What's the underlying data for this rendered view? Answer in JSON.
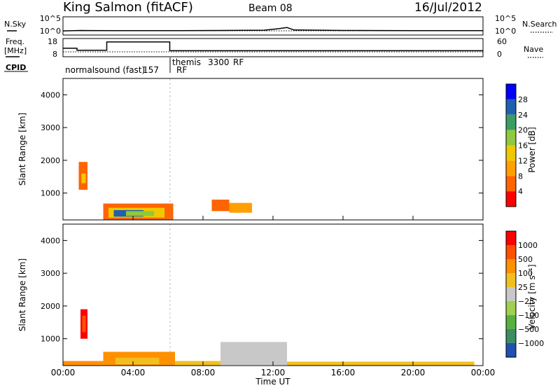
{
  "header": {
    "station": "King Salmon (fitACF)",
    "beam": "Beam 08",
    "date": "16/Jul/2012"
  },
  "noise_panel": {
    "left_label": "N.Sky",
    "right_label": "N.Search",
    "left_ticks": [
      "10^5",
      "10^0"
    ],
    "right_ticks": [
      "10^5",
      "10^0"
    ]
  },
  "freq_panel": {
    "left_label_line1": "Freq.",
    "left_label_line2": "[MHz]",
    "left_ticks": [
      "18",
      "8"
    ],
    "right_label": "Nave",
    "right_ticks": [
      "60",
      "0"
    ],
    "freq_steps": [
      {
        "start": 0.0,
        "end": 0.8,
        "mhz": 12.6
      },
      {
        "start": 0.8,
        "end": 2.5,
        "mhz": 11.3
      },
      {
        "start": 2.5,
        "end": 6.1,
        "mhz": 16.7
      },
      {
        "start": 6.1,
        "end": 24.0,
        "mhz": 11.0
      }
    ]
  },
  "cpid": {
    "label": "CPID",
    "programs": [
      {
        "name": "normalsound (fast)",
        "id": "157",
        "suffix": "RF",
        "start_hour": 0.0
      },
      {
        "name": "themis",
        "id": "3300",
        "suffix": "RF",
        "start_hour": 6.1
      }
    ]
  },
  "power_scale": {
    "title": "Power [dB]",
    "ticks": [
      "28",
      "24",
      "20",
      "16",
      "12",
      "8",
      "4"
    ],
    "colors": [
      "#ff0000",
      "#ff6400",
      "#ffa000",
      "#f0c800",
      "#90c840",
      "#3c9c64",
      "#2060b0",
      "#0000ff"
    ]
  },
  "velocity_scale": {
    "title": "Velocity [m s⁻¹]",
    "ticks": [
      "1000",
      "500",
      "100",
      "25",
      "−25",
      "−100",
      "−500",
      "−1000"
    ],
    "colors": [
      "#2050b0",
      "#3c8c64",
      "#58b040",
      "#a0d050",
      "#c8c8c8",
      "#f0c020",
      "#ff9000",
      "#ff5000",
      "#ff0000"
    ]
  },
  "axes": {
    "ylabel": "Slant Range [km]",
    "xlabel": "Time UT",
    "yticks": [
      "1000",
      "2000",
      "3000",
      "4000"
    ],
    "xticks": [
      "00:00",
      "04:00",
      "08:00",
      "12:00",
      "16:00",
      "20:00",
      "00:00"
    ]
  },
  "chart_data": {
    "type": "heatmap",
    "x_range_hours": [
      0,
      24
    ],
    "y_range_km": [
      180,
      4500
    ],
    "noise_sky": [
      {
        "t": 0.0,
        "log": 1.1
      },
      {
        "t": 1.0,
        "log": 1.3
      },
      {
        "t": 3.0,
        "log": 1.2
      },
      {
        "t": 6.0,
        "log": 1.2
      },
      {
        "t": 9.0,
        "log": 1.3
      },
      {
        "t": 11.5,
        "log": 1.4
      },
      {
        "t": 12.3,
        "log": 2.0
      },
      {
        "t": 12.8,
        "log": 2.5
      },
      {
        "t": 13.2,
        "log": 1.5
      },
      {
        "t": 16.0,
        "log": 1.3
      },
      {
        "t": 20.0,
        "log": 1.2
      },
      {
        "t": 24.0,
        "log": 1.2
      }
    ],
    "power_blocks": [
      {
        "t0": 2.3,
        "t1": 6.3,
        "r0": 180,
        "r1": 680,
        "level": 1
      },
      {
        "t0": 2.6,
        "t1": 5.8,
        "r0": 250,
        "r1": 550,
        "level": 3
      },
      {
        "t0": 2.9,
        "t1": 4.6,
        "r0": 280,
        "r1": 480,
        "level": 6
      },
      {
        "t0": 3.6,
        "t1": 5.2,
        "r0": 300,
        "r1": 450,
        "level": 4
      },
      {
        "t0": 0.9,
        "t1": 1.4,
        "r0": 1100,
        "r1": 1950,
        "level": 1
      },
      {
        "t0": 1.05,
        "t1": 1.3,
        "r0": 1300,
        "r1": 1600,
        "level": 3
      },
      {
        "t0": 8.5,
        "t1": 9.5,
        "r0": 450,
        "r1": 800,
        "level": 1
      },
      {
        "t0": 9.5,
        "t1": 10.8,
        "r0": 400,
        "r1": 700,
        "level": 2
      }
    ],
    "velocity_blocks": [
      {
        "t0": 1.0,
        "t1": 1.4,
        "r0": 1000,
        "r1": 1900,
        "level": 8
      },
      {
        "t0": 1.1,
        "t1": 1.3,
        "r0": 1200,
        "r1": 1700,
        "level": 7
      },
      {
        "t0": 0.0,
        "t1": 2.3,
        "r0": 180,
        "r1": 320,
        "level": 6
      },
      {
        "t0": 2.3,
        "t1": 6.4,
        "r0": 180,
        "r1": 600,
        "level": 6
      },
      {
        "t0": 3.0,
        "t1": 5.5,
        "r0": 220,
        "r1": 420,
        "level": 5
      },
      {
        "t0": 6.4,
        "t1": 9.0,
        "r0": 180,
        "r1": 320,
        "level": 5
      },
      {
        "t0": 9.0,
        "t1": 12.8,
        "r0": 200,
        "r1": 900,
        "level": 4
      },
      {
        "t0": 12.8,
        "t1": 23.5,
        "r0": 180,
        "r1": 300,
        "level": 5
      }
    ]
  }
}
